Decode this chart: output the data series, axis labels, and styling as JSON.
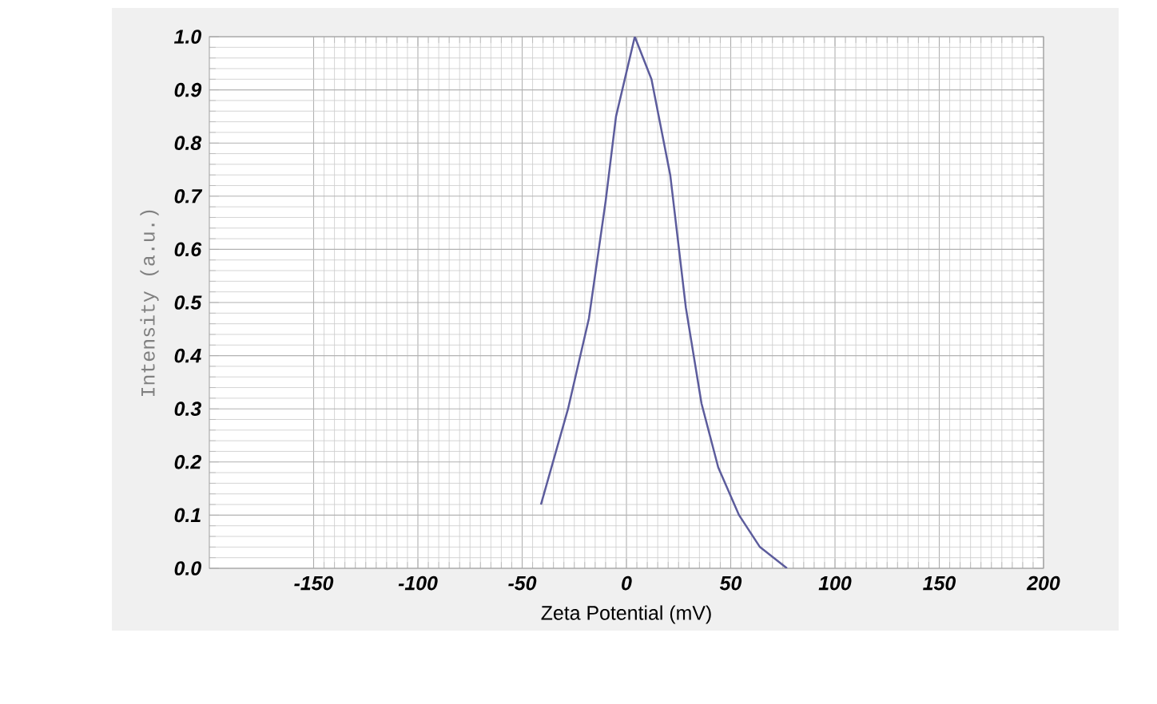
{
  "chart_data": {
    "type": "line",
    "xlabel": "Zeta Potential (mV)",
    "ylabel": "Intensity (a.u.)",
    "xlim": [
      -200,
      200
    ],
    "ylim": [
      0,
      1
    ],
    "xticks": [
      -150,
      -100,
      -50,
      0,
      50,
      100,
      150,
      200
    ],
    "yticks": [
      {
        "value": 0,
        "label": "0.0"
      },
      {
        "value": 0.1,
        "label": "0.1"
      },
      {
        "value": 0.2,
        "label": "0.2"
      },
      {
        "value": 0.3,
        "label": "0.3"
      },
      {
        "value": 0.4,
        "label": "0.4"
      },
      {
        "value": 0.5,
        "label": "0.5"
      },
      {
        "value": 0.6,
        "label": "0.6"
      },
      {
        "value": 0.7,
        "label": "0.7"
      },
      {
        "value": 0.8,
        "label": "0.8"
      },
      {
        "value": 0.9,
        "label": "0.9"
      },
      {
        "value": 1,
        "label": "1.0"
      }
    ],
    "grid": true,
    "marker": "none",
    "line_style": "solid",
    "series": [
      {
        "color": "#5c5c9c",
        "x": [
          -41,
          -28,
          -18,
          -10,
          -5,
          4,
          12,
          21,
          28.5,
          36,
          44,
          54,
          64,
          77
        ],
        "values": [
          0.12,
          0.3,
          0.47,
          0.69,
          0.85,
          1.0,
          0.92,
          0.74,
          0.49,
          0.31,
          0.19,
          0.1,
          0.04,
          0.0
        ]
      }
    ]
  }
}
